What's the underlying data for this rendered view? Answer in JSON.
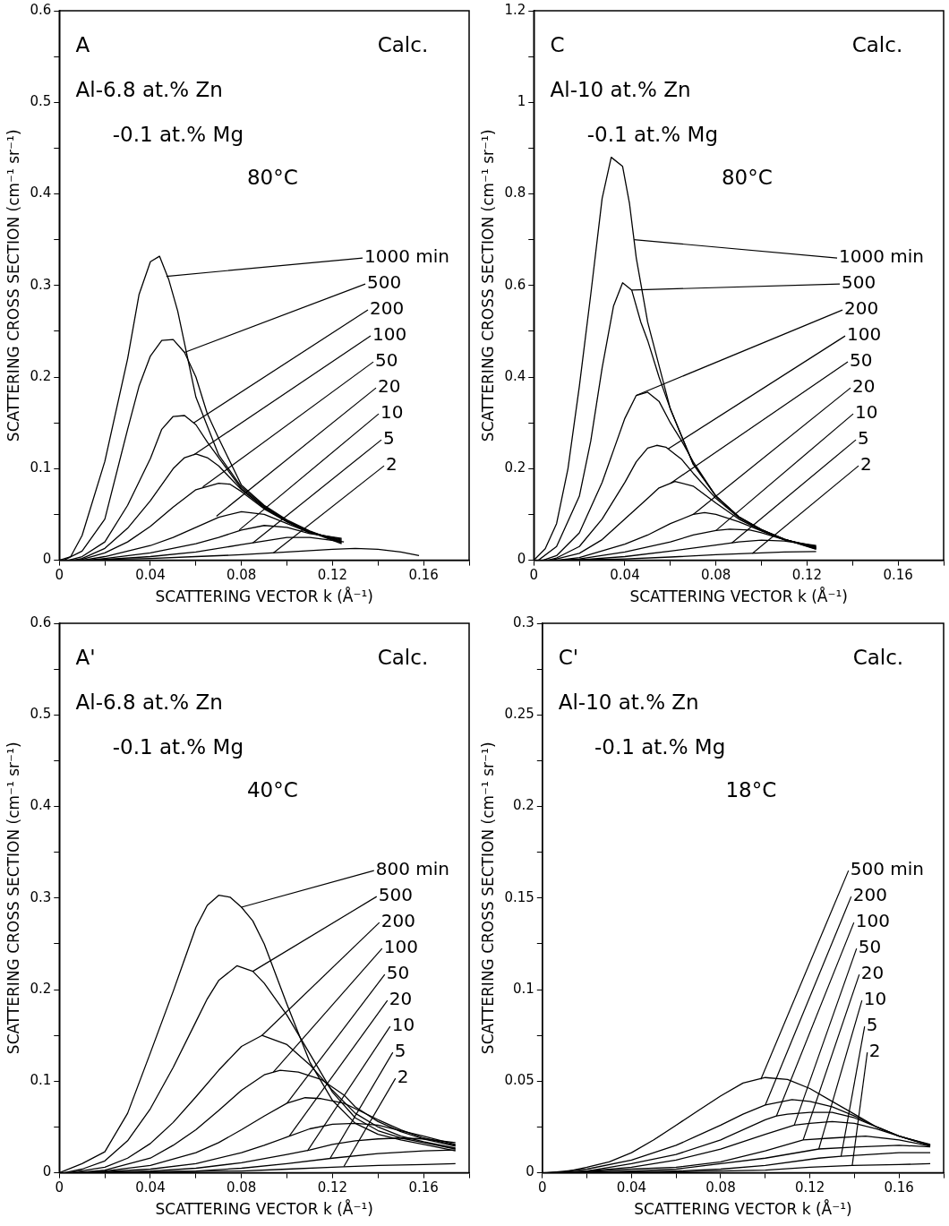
{
  "chart_data": [
    {
      "type": "line",
      "xlabel": "SCATTERING VECTOR k (Å⁻¹)",
      "ylabel": "SCATTERING CROSS SECTION (cm⁻¹ sr⁻¹)",
      "xlim": [
        0,
        0.18
      ],
      "ylim": [
        0,
        0.6
      ],
      "xticks": [
        0,
        {
          "value": 0.02,
          "label": null
        },
        0.04,
        {
          "value": 0.06,
          "label": null
        },
        0.08,
        {
          "value": 0.1,
          "label": null
        },
        0.12,
        {
          "value": 0.14,
          "label": null
        },
        0.16,
        {
          "value": 0.18,
          "label": null
        }
      ],
      "yticks": [
        0,
        {
          "value": 0.05,
          "label": null
        },
        0.1,
        {
          "value": 0.15,
          "label": null
        },
        0.2,
        {
          "value": 0.25,
          "label": null
        },
        0.3,
        {
          "value": 0.35,
          "label": null
        },
        0.4,
        {
          "value": 0.45,
          "label": null
        },
        0.5,
        {
          "value": 0.55,
          "label": null
        },
        0.6
      ],
      "series": [
        {
          "color": "#000000",
          "x": [
            0,
            0.005,
            0.01,
            0.02,
            0.03,
            0.035,
            0.04,
            0.044,
            0.048,
            0.052,
            0.06,
            0.07,
            0.08,
            0.09,
            0.1,
            0.11,
            0.124
          ],
          "values": [
            0,
            0.004,
            0.027,
            0.108,
            0.22,
            0.29,
            0.326,
            0.332,
            0.307,
            0.272,
            0.178,
            0.115,
            0.08,
            0.059,
            0.043,
            0.031,
            0.018
          ]
        },
        {
          "color": "#000000",
          "x": [
            0.002,
            0.01,
            0.02,
            0.03,
            0.035,
            0.04,
            0.045,
            0.05,
            0.055,
            0.06,
            0.065,
            0.07,
            0.08,
            0.09,
            0.1,
            0.11,
            0.124
          ],
          "values": [
            0,
            0.01,
            0.045,
            0.143,
            0.19,
            0.223,
            0.24,
            0.241,
            0.227,
            0.2,
            0.16,
            0.133,
            0.082,
            0.06,
            0.044,
            0.032,
            0.019
          ]
        },
        {
          "color": "#000000",
          "x": [
            0.004,
            0.01,
            0.02,
            0.03,
            0.04,
            0.045,
            0.05,
            0.055,
            0.06,
            0.065,
            0.07,
            0.08,
            0.09,
            0.1,
            0.11,
            0.124
          ],
          "values": [
            0,
            0.004,
            0.02,
            0.06,
            0.111,
            0.143,
            0.157,
            0.158,
            0.148,
            0.129,
            0.112,
            0.078,
            0.058,
            0.043,
            0.031,
            0.02
          ]
        },
        {
          "color": "#000000",
          "x": [
            0.006,
            0.01,
            0.02,
            0.03,
            0.04,
            0.05,
            0.055,
            0.06,
            0.065,
            0.07,
            0.08,
            0.09,
            0.1,
            0.11,
            0.124
          ],
          "values": [
            0,
            0.002,
            0.013,
            0.035,
            0.065,
            0.1,
            0.112,
            0.116,
            0.112,
            0.103,
            0.077,
            0.057,
            0.042,
            0.031,
            0.021
          ]
        },
        {
          "color": "#000000",
          "x": [
            0.008,
            0.01,
            0.02,
            0.03,
            0.04,
            0.05,
            0.06,
            0.07,
            0.075,
            0.08,
            0.09,
            0.1,
            0.11,
            0.124
          ],
          "values": [
            0,
            0.001,
            0.008,
            0.02,
            0.037,
            0.058,
            0.077,
            0.084,
            0.083,
            0.075,
            0.056,
            0.042,
            0.03,
            0.022
          ]
        },
        {
          "color": "#000000",
          "x": [
            0.01,
            0.02,
            0.04,
            0.05,
            0.06,
            0.07,
            0.08,
            0.09,
            0.1,
            0.11,
            0.124
          ],
          "values": [
            0,
            0.004,
            0.016,
            0.025,
            0.036,
            0.047,
            0.053,
            0.05,
            0.04,
            0.03,
            0.023
          ]
        },
        {
          "color": "#000000",
          "x": [
            0.012,
            0.02,
            0.04,
            0.06,
            0.07,
            0.08,
            0.09,
            0.1,
            0.11,
            0.124
          ],
          "values": [
            0,
            0.002,
            0.008,
            0.018,
            0.025,
            0.033,
            0.038,
            0.036,
            0.029,
            0.024
          ]
        },
        {
          "color": "#000000",
          "x": [
            0.014,
            0.02,
            0.04,
            0.06,
            0.08,
            0.09,
            0.1,
            0.11,
            0.125
          ],
          "values": [
            0,
            0.001,
            0.004,
            0.009,
            0.017,
            0.021,
            0.025,
            0.025,
            0.02
          ]
        },
        {
          "color": "#000000",
          "x": [
            0.016,
            0.02,
            0.04,
            0.06,
            0.08,
            0.1,
            0.12,
            0.13,
            0.14,
            0.15,
            0.158
          ],
          "values": [
            0,
            0.001,
            0.002,
            0.004,
            0.006,
            0.009,
            0.012,
            0.013,
            0.012,
            0.009,
            0.005
          ]
        }
      ],
      "annotations": [
        "A",
        "Calc.",
        "Al-6.8 at.% Zn",
        "-0.1 at.% Mg",
        "80°C",
        {
          "text": "1000 min",
          "x": 0.047,
          "y": 0.31
        },
        {
          "text": "500",
          "x": 0.055,
          "y": 0.227
        },
        {
          "text": "200",
          "x": 0.059,
          "y": 0.15
        },
        {
          "text": "100",
          "x": 0.059,
          "y": 0.115
        },
        {
          "text": "50",
          "x": 0.063,
          "y": 0.08
        },
        {
          "text": "20",
          "x": 0.069,
          "y": 0.048
        },
        {
          "text": "10",
          "x": 0.079,
          "y": 0.033
        },
        {
          "text": "5",
          "x": 0.085,
          "y": 0.019
        },
        {
          "text": "2",
          "x": 0.094,
          "y": 0.008
        }
      ]
    },
    {
      "type": "line",
      "xlabel": "SCATTERING VECTOR k (Å⁻¹)",
      "ylabel": "SCATTERING CROSS SECTION (cm⁻¹ sr⁻¹)",
      "xlim": [
        0,
        0.18
      ],
      "ylim": [
        0,
        1.2
      ],
      "xticks": [
        0,
        {
          "value": 0.02,
          "label": null
        },
        0.04,
        {
          "value": 0.06,
          "label": null
        },
        0.08,
        {
          "value": 0.1,
          "label": null
        },
        0.12,
        {
          "value": 0.14,
          "label": null
        },
        0.16,
        {
          "value": 0.18,
          "label": null
        }
      ],
      "yticks": [
        0,
        {
          "value": 0.1,
          "label": null
        },
        0.2,
        {
          "value": 0.3,
          "label": null
        },
        0.4,
        {
          "value": 0.5,
          "label": null
        },
        0.6,
        {
          "value": 0.7,
          "label": null
        },
        0.8,
        {
          "value": 0.9,
          "label": null
        },
        1,
        {
          "value": 1.1,
          "label": null
        },
        1.2
      ],
      "series": [
        {
          "color": "#000000",
          "x": [
            0,
            0.005,
            0.01,
            0.015,
            0.02,
            0.025,
            0.03,
            0.034,
            0.039,
            0.042,
            0.045,
            0.05,
            0.06,
            0.07,
            0.08,
            0.09,
            0.1,
            0.11,
            0.124
          ],
          "values": [
            0,
            0.025,
            0.08,
            0.2,
            0.38,
            0.58,
            0.79,
            0.88,
            0.86,
            0.78,
            0.66,
            0.52,
            0.33,
            0.21,
            0.14,
            0.095,
            0.067,
            0.046,
            0.024
          ]
        },
        {
          "color": "#000000",
          "x": [
            0.002,
            0.01,
            0.02,
            0.025,
            0.03,
            0.035,
            0.039,
            0.043,
            0.047,
            0.05,
            0.055,
            0.06,
            0.07,
            0.08,
            0.09,
            0.1,
            0.11,
            0.124
          ],
          "values": [
            0,
            0.03,
            0.14,
            0.26,
            0.42,
            0.555,
            0.606,
            0.59,
            0.52,
            0.48,
            0.4,
            0.33,
            0.21,
            0.14,
            0.095,
            0.067,
            0.046,
            0.025
          ]
        },
        {
          "color": "#000000",
          "x": [
            0.004,
            0.01,
            0.02,
            0.03,
            0.035,
            0.04,
            0.045,
            0.05,
            0.055,
            0.06,
            0.065,
            0.07,
            0.08,
            0.09,
            0.1,
            0.11,
            0.124
          ],
          "values": [
            0,
            0.01,
            0.06,
            0.17,
            0.24,
            0.31,
            0.36,
            0.367,
            0.347,
            0.3,
            0.26,
            0.215,
            0.14,
            0.095,
            0.066,
            0.046,
            0.026
          ]
        },
        {
          "color": "#000000",
          "x": [
            0.006,
            0.01,
            0.02,
            0.03,
            0.04,
            0.045,
            0.05,
            0.054,
            0.058,
            0.065,
            0.07,
            0.08,
            0.09,
            0.1,
            0.11,
            0.124
          ],
          "values": [
            0,
            0.005,
            0.03,
            0.09,
            0.17,
            0.215,
            0.245,
            0.251,
            0.247,
            0.22,
            0.19,
            0.135,
            0.093,
            0.066,
            0.046,
            0.027
          ]
        },
        {
          "color": "#000000",
          "x": [
            0.008,
            0.01,
            0.02,
            0.03,
            0.04,
            0.05,
            0.055,
            0.062,
            0.07,
            0.08,
            0.09,
            0.1,
            0.11,
            0.124
          ],
          "values": [
            0,
            0.003,
            0.015,
            0.045,
            0.09,
            0.135,
            0.158,
            0.172,
            0.162,
            0.125,
            0.09,
            0.065,
            0.045,
            0.028
          ]
        },
        {
          "color": "#000000",
          "x": [
            0.01,
            0.02,
            0.04,
            0.05,
            0.06,
            0.07,
            0.075,
            0.08,
            0.09,
            0.1,
            0.11,
            0.124
          ],
          "values": [
            0,
            0.006,
            0.035,
            0.055,
            0.08,
            0.1,
            0.104,
            0.1,
            0.084,
            0.064,
            0.045,
            0.029
          ]
        },
        {
          "color": "#000000",
          "x": [
            0.012,
            0.02,
            0.04,
            0.06,
            0.07,
            0.08,
            0.086,
            0.095,
            0.1,
            0.11,
            0.124
          ],
          "values": [
            0,
            0.003,
            0.018,
            0.04,
            0.055,
            0.065,
            0.068,
            0.066,
            0.06,
            0.045,
            0.03
          ]
        },
        {
          "color": "#000000",
          "x": [
            0.014,
            0.02,
            0.04,
            0.06,
            0.08,
            0.09,
            0.1,
            0.11,
            0.124
          ],
          "values": [
            0,
            0.001,
            0.008,
            0.02,
            0.033,
            0.04,
            0.044,
            0.042,
            0.032
          ]
        },
        {
          "color": "#000000",
          "x": [
            0.016,
            0.02,
            0.04,
            0.06,
            0.08,
            0.1,
            0.11,
            0.124
          ],
          "values": [
            0,
            0.001,
            0.003,
            0.007,
            0.012,
            0.016,
            0.018,
            0.019
          ]
        }
      ],
      "annotations": [
        "C",
        "Calc.",
        "Al-10 at.% Zn",
        "-0.1 at.% Mg",
        "80°C",
        {
          "text": "1000 min",
          "x": 0.044,
          "y": 0.7
        },
        {
          "text": "500",
          "x": 0.043,
          "y": 0.59
        },
        {
          "text": "200",
          "x": 0.045,
          "y": 0.36
        },
        {
          "text": "100",
          "x": 0.059,
          "y": 0.243
        },
        {
          "text": "50",
          "x": 0.06,
          "y": 0.168
        },
        {
          "text": "20",
          "x": 0.07,
          "y": 0.1
        },
        {
          "text": "10",
          "x": 0.08,
          "y": 0.065
        },
        {
          "text": "5",
          "x": 0.087,
          "y": 0.038
        },
        {
          "text": "2",
          "x": 0.096,
          "y": 0.015
        }
      ]
    },
    {
      "type": "line",
      "xlabel": "SCATTERING VECTOR k (Å⁻¹)",
      "ylabel": "SCATTERING CROSS SECTION (cm⁻¹ sr⁻¹)",
      "xlim": [
        0,
        0.18
      ],
      "ylim": [
        0,
        0.6
      ],
      "xticks": [
        0,
        {
          "value": 0.02,
          "label": null
        },
        0.04,
        {
          "value": 0.06,
          "label": null
        },
        0.08,
        {
          "value": 0.1,
          "label": null
        },
        0.12,
        {
          "value": 0.14,
          "label": null
        },
        0.16,
        {
          "value": 0.18,
          "label": null
        }
      ],
      "yticks": [
        0,
        {
          "value": 0.05,
          "label": null
        },
        0.1,
        {
          "value": 0.15,
          "label": null
        },
        0.2,
        {
          "value": 0.25,
          "label": null
        },
        0.3,
        {
          "value": 0.35,
          "label": null
        },
        0.4,
        {
          "value": 0.45,
          "label": null
        },
        0.5,
        {
          "value": 0.55,
          "label": null
        },
        0.6
      ],
      "series": [
        {
          "color": "#000000",
          "x": [
            0,
            0.01,
            0.02,
            0.03,
            0.04,
            0.05,
            0.055,
            0.06,
            0.065,
            0.07,
            0.075,
            0.08,
            0.085,
            0.09,
            0.1,
            0.11,
            0.12,
            0.13,
            0.14,
            0.15,
            0.16,
            0.174
          ],
          "values": [
            0,
            0.01,
            0.023,
            0.065,
            0.131,
            0.198,
            0.233,
            0.268,
            0.292,
            0.303,
            0.301,
            0.29,
            0.275,
            0.25,
            0.184,
            0.121,
            0.079,
            0.054,
            0.042,
            0.036,
            0.031,
            0.024
          ]
        },
        {
          "color": "#000000",
          "x": [
            0.002,
            0.01,
            0.02,
            0.03,
            0.04,
            0.05,
            0.06,
            0.065,
            0.07,
            0.078,
            0.085,
            0.09,
            0.1,
            0.11,
            0.12,
            0.13,
            0.14,
            0.15,
            0.16,
            0.174
          ],
          "values": [
            0,
            0.004,
            0.013,
            0.035,
            0.07,
            0.115,
            0.165,
            0.19,
            0.21,
            0.226,
            0.22,
            0.207,
            0.172,
            0.13,
            0.088,
            0.06,
            0.046,
            0.038,
            0.033,
            0.026
          ]
        },
        {
          "color": "#000000",
          "x": [
            0.004,
            0.02,
            0.03,
            0.04,
            0.05,
            0.06,
            0.07,
            0.08,
            0.089,
            0.1,
            0.11,
            0.12,
            0.13,
            0.14,
            0.15,
            0.16,
            0.174
          ],
          "values": [
            0,
            0.006,
            0.016,
            0.032,
            0.055,
            0.083,
            0.112,
            0.138,
            0.15,
            0.14,
            0.118,
            0.09,
            0.065,
            0.05,
            0.04,
            0.034,
            0.027
          ]
        },
        {
          "color": "#000000",
          "x": [
            0.006,
            0.02,
            0.04,
            0.05,
            0.06,
            0.07,
            0.08,
            0.09,
            0.097,
            0.105,
            0.115,
            0.125,
            0.13,
            0.14,
            0.15,
            0.16,
            0.174
          ],
          "values": [
            0,
            0.003,
            0.016,
            0.03,
            0.047,
            0.068,
            0.09,
            0.107,
            0.112,
            0.11,
            0.102,
            0.085,
            0.072,
            0.056,
            0.045,
            0.037,
            0.029
          ]
        },
        {
          "color": "#000000",
          "x": [
            0.008,
            0.02,
            0.04,
            0.06,
            0.07,
            0.08,
            0.09,
            0.1,
            0.108,
            0.115,
            0.125,
            0.13,
            0.14,
            0.15,
            0.16,
            0.174
          ],
          "values": [
            0,
            0.002,
            0.008,
            0.022,
            0.033,
            0.047,
            0.062,
            0.076,
            0.082,
            0.081,
            0.076,
            0.07,
            0.058,
            0.047,
            0.038,
            0.03
          ]
        },
        {
          "color": "#000000",
          "x": [
            0.01,
            0.04,
            0.06,
            0.08,
            0.09,
            0.1,
            0.11,
            0.12,
            0.13,
            0.14,
            0.15,
            0.16,
            0.174
          ],
          "values": [
            0,
            0.004,
            0.01,
            0.022,
            0.03,
            0.039,
            0.048,
            0.053,
            0.054,
            0.052,
            0.046,
            0.04,
            0.031
          ]
        },
        {
          "color": "#000000",
          "x": [
            0.012,
            0.04,
            0.06,
            0.08,
            0.1,
            0.11,
            0.12,
            0.13,
            0.14,
            0.15,
            0.16,
            0.174
          ],
          "values": [
            0,
            0.002,
            0.005,
            0.011,
            0.02,
            0.025,
            0.031,
            0.035,
            0.037,
            0.038,
            0.037,
            0.033
          ]
        },
        {
          "color": "#000000",
          "x": [
            0.014,
            0.04,
            0.06,
            0.08,
            0.1,
            0.12,
            0.14,
            0.16,
            0.174
          ],
          "values": [
            0,
            0.001,
            0.002,
            0.005,
            0.01,
            0.016,
            0.021,
            0.024,
            0.025
          ]
        },
        {
          "color": "#000000",
          "x": [
            0.016,
            0.04,
            0.08,
            0.1,
            0.12,
            0.14,
            0.16,
            0.174
          ],
          "values": [
            0,
            0.001,
            0.002,
            0.004,
            0.006,
            0.008,
            0.009,
            0.01
          ]
        }
      ],
      "annotations": [
        "A'",
        "Calc.",
        "Al-6.8 at.% Zn",
        "-0.1 at.% Mg",
        "40°C",
        {
          "text": "800 min",
          "x": 0.08,
          "y": 0.29
        },
        {
          "text": "500",
          "x": 0.085,
          "y": 0.22
        },
        {
          "text": "200",
          "x": 0.089,
          "y": 0.15
        },
        {
          "text": "100",
          "x": 0.094,
          "y": 0.11
        },
        {
          "text": "50",
          "x": 0.1,
          "y": 0.076
        },
        {
          "text": "20",
          "x": 0.101,
          "y": 0.04
        },
        {
          "text": "10",
          "x": 0.109,
          "y": 0.024
        },
        {
          "text": "5",
          "x": 0.119,
          "y": 0.016
        },
        {
          "text": "2",
          "x": 0.125,
          "y": 0.007
        }
      ]
    },
    {
      "type": "line",
      "xlabel": "SCATTERING VECTOR k (Å⁻¹)",
      "ylabel": "SCATTERING CROSS SECTION (cm⁻¹ sr⁻¹)",
      "xlim": [
        0,
        0.18
      ],
      "ylim": [
        0,
        0.3
      ],
      "xticks": [
        0,
        {
          "value": 0.02,
          "label": null
        },
        0.04,
        {
          "value": 0.06,
          "label": null
        },
        0.08,
        {
          "value": 0.1,
          "label": null
        },
        0.12,
        {
          "value": 0.14,
          "label": null
        },
        0.16,
        {
          "value": 0.18,
          "label": null
        }
      ],
      "yticks": [
        0,
        {
          "value": 0.025,
          "label": null
        },
        0.05,
        {
          "value": 0.075,
          "label": null
        },
        0.1,
        {
          "value": 0.125,
          "label": null
        },
        0.15,
        {
          "value": 0.175,
          "label": null
        },
        0.2,
        {
          "value": 0.225,
          "label": null
        },
        0.25,
        {
          "value": 0.275,
          "label": null
        },
        0.3
      ],
      "series": [
        {
          "color": "#000000",
          "x": [
            0,
            0.01,
            0.02,
            0.03,
            0.04,
            0.05,
            0.06,
            0.07,
            0.08,
            0.09,
            0.1,
            0.11,
            0.12,
            0.13,
            0.14,
            0.15,
            0.16,
            0.174
          ],
          "values": [
            0,
            0.0005,
            0.003,
            0.006,
            0.011,
            0.018,
            0.026,
            0.034,
            0.042,
            0.049,
            0.052,
            0.051,
            0.046,
            0.039,
            0.032,
            0.025,
            0.02,
            0.015
          ]
        },
        {
          "color": "#000000",
          "x": [
            0.002,
            0.02,
            0.04,
            0.06,
            0.08,
            0.09,
            0.1,
            0.112,
            0.12,
            0.13,
            0.14,
            0.15,
            0.16,
            0.174
          ],
          "values": [
            0,
            0.002,
            0.007,
            0.015,
            0.026,
            0.032,
            0.037,
            0.04,
            0.039,
            0.036,
            0.031,
            0.025,
            0.02,
            0.0148
          ]
        },
        {
          "color": "#000000",
          "x": [
            0.004,
            0.02,
            0.04,
            0.06,
            0.08,
            0.1,
            0.105,
            0.11,
            0.12,
            0.13,
            0.14,
            0.15,
            0.16,
            0.174
          ],
          "values": [
            0,
            0.001,
            0.005,
            0.01,
            0.018,
            0.029,
            0.031,
            0.032,
            0.033,
            0.033,
            0.03,
            0.025,
            0.02,
            0.0152
          ]
        },
        {
          "color": "#000000",
          "x": [
            0.006,
            0.02,
            0.04,
            0.06,
            0.08,
            0.1,
            0.113,
            0.12,
            0.13,
            0.14,
            0.15,
            0.16,
            0.174
          ],
          "values": [
            0,
            0.001,
            0.003,
            0.007,
            0.013,
            0.021,
            0.026,
            0.027,
            0.028,
            0.027,
            0.024,
            0.02,
            0.0155
          ]
        },
        {
          "color": "#000000",
          "x": [
            0.008,
            0.04,
            0.06,
            0.08,
            0.1,
            0.117,
            0.13,
            0.145,
            0.16,
            0.174
          ],
          "values": [
            0,
            0.002,
            0.003,
            0.006,
            0.012,
            0.018,
            0.019,
            0.02,
            0.018,
            0.0145
          ]
        },
        {
          "color": "#000000",
          "x": [
            0.01,
            0.04,
            0.06,
            0.08,
            0.1,
            0.124,
            0.14,
            0.16,
            0.174
          ],
          "values": [
            0,
            0.001,
            0.002,
            0.005,
            0.008,
            0.013,
            0.014,
            0.015,
            0.0142
          ]
        },
        {
          "color": "#000000",
          "x": [
            0.012,
            0.04,
            0.06,
            0.08,
            0.1,
            0.124,
            0.134,
            0.16,
            0.174
          ],
          "values": [
            0,
            0.0005,
            0.001,
            0.002,
            0.004,
            0.008,
            0.009,
            0.011,
            0.011
          ]
        },
        {
          "color": "#000000",
          "x": [
            0.014,
            0.06,
            0.1,
            0.12,
            0.139,
            0.16,
            0.174
          ],
          "values": [
            0,
            0.0005,
            0.0015,
            0.003,
            0.004,
            0.0045,
            0.005
          ]
        }
      ],
      "annotations": [
        "C'",
        "Calc.",
        "Al-10 at.% Zn",
        "-0.1 at.% Mg",
        "18°C",
        {
          "text": "500 min",
          "x": 0.098,
          "y": 0.051
        },
        {
          "text": "200",
          "x": 0.1,
          "y": 0.037
        },
        {
          "text": "100",
          "x": 0.105,
          "y": 0.031
        },
        {
          "text": "50",
          "x": 0.113,
          "y": 0.026
        },
        {
          "text": "20",
          "x": 0.117,
          "y": 0.018
        },
        {
          "text": "10",
          "x": 0.124,
          "y": 0.013
        },
        {
          "text": "5",
          "x": 0.134,
          "y": 0.009
        },
        {
          "text": "2",
          "x": 0.139,
          "y": 0.004
        }
      ]
    }
  ]
}
